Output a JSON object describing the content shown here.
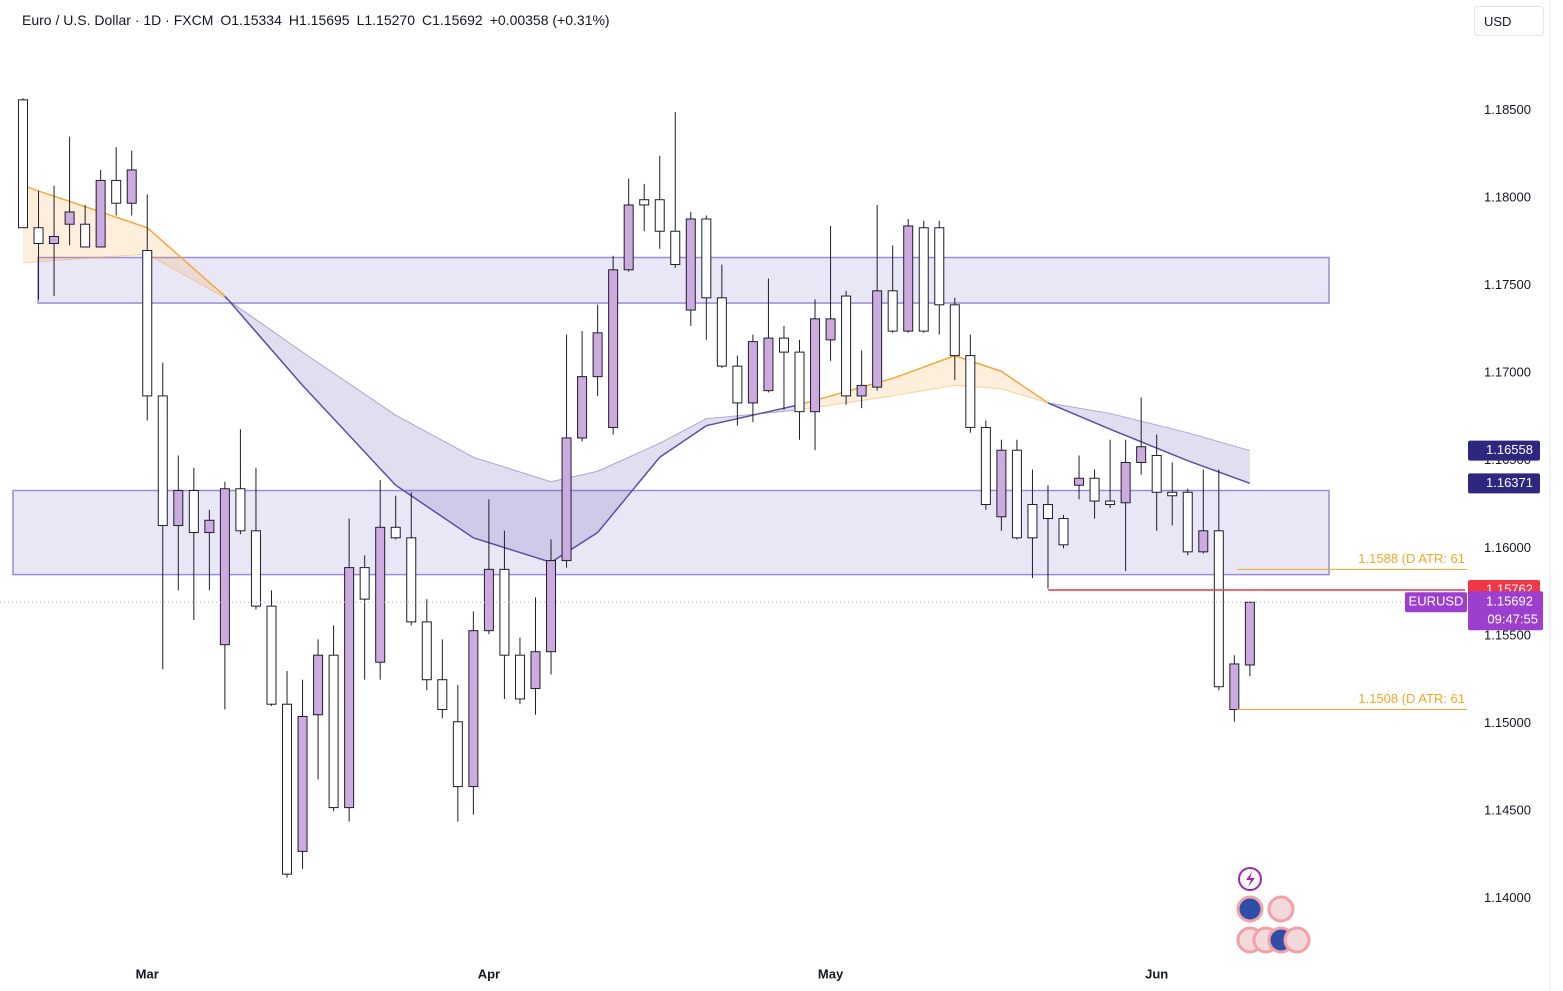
{
  "header": {
    "title": "Euro / U.S. Dollar · 1D · FXCM",
    "open": "O1.15334",
    "high": "H1.15695",
    "low": "L1.15270",
    "close": "C1.15692",
    "change": "+0.00358 (+0.31%)",
    "currency": "USD"
  },
  "chart_data": {
    "type": "candlestick",
    "categories": [
      null,
      null,
      null,
      null,
      null,
      null,
      null,
      null,
      "Mar",
      null,
      null,
      null,
      null,
      null,
      null,
      null,
      null,
      null,
      null,
      null,
      null,
      null,
      null,
      null,
      null,
      null,
      null,
      null,
      null,
      null,
      "Apr",
      null,
      null,
      null,
      null,
      null,
      null,
      null,
      null,
      null,
      null,
      null,
      null,
      null,
      null,
      null,
      null,
      null,
      null,
      null,
      null,
      null,
      "May",
      null,
      null,
      null,
      null,
      null,
      null,
      null,
      null,
      null,
      null,
      null,
      null,
      null,
      null,
      null,
      null,
      null,
      null,
      null,
      null,
      "Jun",
      null,
      null,
      null,
      null,
      null,
      null
    ],
    "series": [
      {
        "name": "EURUSD",
        "up_color": "#cdaae0",
        "down_color": "#ffffff",
        "edge_color": "#1e1e2c",
        "open": [
          1.1856,
          1.1783,
          1.1774,
          1.1785,
          1.1785,
          1.1772,
          1.181,
          1.1797,
          1.177,
          1.1687,
          1.1613,
          1.1633,
          1.1609,
          1.1545,
          1.1634,
          1.161,
          1.1567,
          1.1511,
          1.1427,
          1.1505,
          1.1539,
          1.1452,
          1.1589,
          1.1535,
          1.1612,
          1.1606,
          1.1558,
          1.1525,
          1.1501,
          1.1464,
          1.1553,
          1.1588,
          1.1539,
          1.152,
          1.1541,
          1.1593,
          1.1663,
          1.1698,
          1.1669,
          1.1759,
          1.1799,
          1.1799,
          1.1781,
          1.1736,
          1.1788,
          1.1743,
          1.1704,
          1.1683,
          1.169,
          1.172,
          1.1712,
          1.1678,
          1.1719,
          1.1744,
          1.1687,
          1.1692,
          1.1747,
          1.1724,
          1.1783,
          1.1783,
          1.1739,
          1.171,
          1.1669,
          1.1618,
          1.1656,
          1.1625,
          1.1625,
          1.1617,
          1.1636,
          1.164,
          1.1627,
          1.1626,
          1.1649,
          1.1653,
          1.1632,
          1.1632,
          1.1598,
          1.161,
          1.1508,
          1.15334
        ],
        "high": [
          1.1857,
          1.1804,
          1.1807,
          1.1835,
          1.1796,
          1.1816,
          1.1829,
          1.1827,
          1.1802,
          1.1706,
          1.1653,
          1.1646,
          1.1622,
          1.1638,
          1.1668,
          1.1646,
          1.1576,
          1.153,
          1.1525,
          1.1548,
          1.1556,
          1.1617,
          1.1596,
          1.1639,
          1.163,
          1.1632,
          1.1571,
          1.1548,
          1.1522,
          1.1564,
          1.1628,
          1.161,
          1.1549,
          1.1572,
          1.1605,
          1.1722,
          1.1724,
          1.1739,
          1.1767,
          1.1811,
          1.1808,
          1.1824,
          1.1849,
          1.1792,
          1.179,
          1.1762,
          1.171,
          1.1722,
          1.1754,
          1.1727,
          1.1719,
          1.1742,
          1.1784,
          1.1747,
          1.1713,
          1.1796,
          1.1773,
          1.1788,
          1.1787,
          1.1787,
          1.1743,
          1.1722,
          1.1673,
          1.1662,
          1.1662,
          1.1645,
          1.1636,
          1.1619,
          1.1653,
          1.1645,
          1.1662,
          1.1662,
          1.1686,
          1.1665,
          1.1649,
          1.1634,
          1.1645,
          1.1645,
          1.1539,
          1.15695
        ],
        "low": [
          1.1783,
          1.1742,
          1.1744,
          1.1773,
          1.1772,
          1.1772,
          1.179,
          1.179,
          1.1673,
          1.1531,
          1.1576,
          1.1559,
          1.1576,
          1.1508,
          1.1608,
          1.1565,
          1.151,
          1.1412,
          1.1417,
          1.1468,
          1.145,
          1.1444,
          1.1525,
          1.1525,
          1.1605,
          1.1556,
          1.1519,
          1.1503,
          1.1444,
          1.1448,
          1.1551,
          1.1514,
          1.1511,
          1.1505,
          1.1528,
          1.1589,
          1.1661,
          1.1687,
          1.1665,
          1.1758,
          1.1781,
          1.1771,
          1.176,
          1.1727,
          1.1719,
          1.1703,
          1.167,
          1.1672,
          1.1689,
          1.1679,
          1.1662,
          1.1656,
          1.1707,
          1.1682,
          1.168,
          1.169,
          1.1723,
          1.1723,
          1.1723,
          1.1722,
          1.1696,
          1.1666,
          1.1622,
          1.161,
          1.1605,
          1.1583,
          1.1577,
          1.16,
          1.1628,
          1.1617,
          1.1623,
          1.1587,
          1.1642,
          1.161,
          1.1613,
          1.1596,
          1.1597,
          1.1519,
          1.1501,
          1.1527
        ],
        "close": [
          1.1783,
          1.1774,
          1.1778,
          1.1792,
          1.1772,
          1.181,
          1.1797,
          1.1816,
          1.1687,
          1.1613,
          1.1633,
          1.1609,
          1.1616,
          1.1634,
          1.161,
          1.1567,
          1.1511,
          1.1414,
          1.1504,
          1.1539,
          1.1452,
          1.1589,
          1.1571,
          1.1612,
          1.1606,
          1.1558,
          1.1525,
          1.1508,
          1.1464,
          1.1553,
          1.1588,
          1.1539,
          1.1514,
          1.1541,
          1.1593,
          1.1663,
          1.1698,
          1.1723,
          1.1759,
          1.1796,
          1.1796,
          1.1781,
          1.1762,
          1.1788,
          1.1743,
          1.1704,
          1.1683,
          1.1718,
          1.172,
          1.1712,
          1.1678,
          1.1731,
          1.1731,
          1.1687,
          1.1693,
          1.1747,
          1.1724,
          1.1784,
          1.1724,
          1.1739,
          1.171,
          1.1669,
          1.1625,
          1.1656,
          1.1606,
          1.1606,
          1.1617,
          1.1602,
          1.164,
          1.1627,
          1.1625,
          1.1649,
          1.1658,
          1.1632,
          1.163,
          1.1598,
          1.161,
          1.1521,
          1.1534,
          1.15692
        ]
      }
    ],
    "moving_averages": {
      "x": [
        0,
        8,
        13,
        18,
        24,
        29,
        34,
        37,
        41,
        44,
        50,
        56,
        60,
        63,
        66,
        70,
        75,
        79
      ],
      "fast": [
        1.1807,
        1.1783,
        1.1744,
        1.1693,
        1.1636,
        1.1606,
        1.1592,
        1.1609,
        1.1652,
        1.167,
        1.1682,
        1.1697,
        1.171,
        1.1701,
        1.1683,
        1.1668,
        1.165,
        1.16371
      ],
      "slow": [
        1.1763,
        1.1768,
        1.1743,
        1.1712,
        1.1676,
        1.1652,
        1.1638,
        1.1644,
        1.166,
        1.1674,
        1.1679,
        1.1687,
        1.1693,
        1.1691,
        1.1683,
        1.1677,
        1.1666,
        1.16558
      ],
      "up_color": "#f5a83a",
      "down_color": "#5a4da8",
      "label_color": "#2e2780"
    },
    "zones": [
      {
        "top": 1.1766,
        "bottom": 1.174,
        "color": "#9d8bd6"
      },
      {
        "top": 1.1633,
        "bottom": 1.1585,
        "color": "#9d8bd6"
      }
    ],
    "levels": [
      {
        "value": 1.15762,
        "color": "#f23645"
      }
    ],
    "atr_levels": [
      {
        "value": 1.1588,
        "label": "1.1588 (D ATR: 61",
        "color": "#f5a623"
      },
      {
        "value": 1.1508,
        "label": "1.1508 (D ATR: 61",
        "color": "#f5a623"
      }
    ],
    "price_tag": {
      "symbol": "EURUSD",
      "countdown": "09:47:55",
      "color": "#9c3fce"
    },
    "ylim": [
      1.1365,
      1.1913
    ],
    "yticks": [
      {
        "value": 1.14,
        "label": "1.14000"
      },
      {
        "value": 1.145,
        "label": "1.14500"
      },
      {
        "value": 1.15,
        "label": "1.15000"
      },
      {
        "value": 1.155,
        "label": "1.15500"
      },
      {
        "value": 1.16,
        "label": "1.16000"
      },
      {
        "value": 1.165,
        "label": "1.16500"
      },
      {
        "value": 1.17,
        "label": "1.17000"
      },
      {
        "value": 1.175,
        "label": "1.17500"
      },
      {
        "value": 1.18,
        "label": "1.18000"
      },
      {
        "value": 1.185,
        "label": "1.18500"
      }
    ]
  }
}
